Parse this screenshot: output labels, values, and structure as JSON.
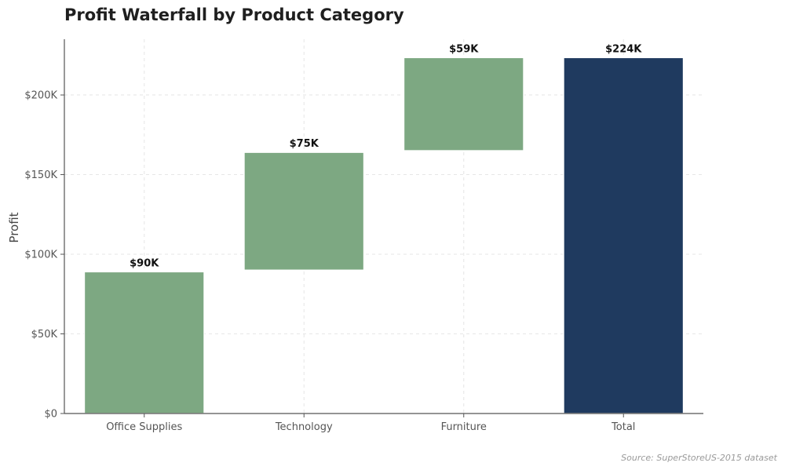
{
  "chart_data": {
    "type": "bar",
    "subtype": "waterfall",
    "title": "Profit Waterfall by Product Category",
    "ylabel": "Profit",
    "xlabel": "",
    "categories": [
      "Office Supplies",
      "Technology",
      "Furniture",
      "Total"
    ],
    "values": [
      90,
      75,
      59,
      224
    ],
    "value_unit": "K USD",
    "bars": [
      {
        "category": "Office Supplies",
        "start": 0,
        "end": 89,
        "label": "$90K",
        "kind": "increase"
      },
      {
        "category": "Technology",
        "start": 90,
        "end": 164,
        "label": "$75K",
        "kind": "increase"
      },
      {
        "category": "Furniture",
        "start": 165,
        "end": 223.5,
        "label": "$59K",
        "kind": "increase"
      },
      {
        "category": "Total",
        "start": 0,
        "end": 223.5,
        "label": "$224K",
        "kind": "total"
      }
    ],
    "ylim": [
      0,
      235
    ],
    "yticks": [
      0,
      50,
      100,
      150,
      200
    ],
    "ytick_labels": [
      "$0",
      "$50K",
      "$100K",
      "$150K",
      "$200K"
    ],
    "grid": true,
    "colors": {
      "increase": "#7da882",
      "total": "#1f3a5f",
      "grid": "#e6e6e6",
      "axis": "#555555"
    }
  },
  "source_note": "Source: SuperStoreUS-2015 dataset"
}
